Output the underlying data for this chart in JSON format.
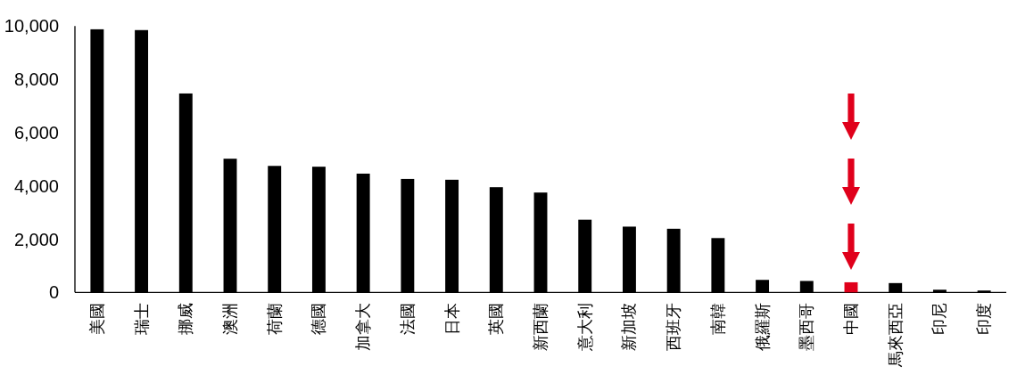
{
  "chart_data": {
    "type": "bar",
    "categories": [
      "美國",
      "瑞士",
      "挪威",
      "澳洲",
      "荷蘭",
      "德國",
      "加拿大",
      "法國",
      "日本",
      "英國",
      "新西蘭",
      "意大利",
      "新加坡",
      "西班牙",
      "南韓",
      "俄羅斯",
      "墨西哥",
      "中國",
      "馬來西亞",
      "印尼",
      "印度"
    ],
    "values": [
      9880,
      9850,
      7470,
      5020,
      4750,
      4720,
      4460,
      4260,
      4230,
      3950,
      3750,
      2730,
      2470,
      2390,
      2040,
      470,
      430,
      380,
      350,
      100,
      70
    ],
    "colors": [
      "#000000",
      "#000000",
      "#000000",
      "#000000",
      "#000000",
      "#000000",
      "#000000",
      "#000000",
      "#000000",
      "#000000",
      "#000000",
      "#000000",
      "#000000",
      "#000000",
      "#000000",
      "#000000",
      "#000000",
      "#e0001b",
      "#000000",
      "#000000",
      "#000000"
    ],
    "ylim": [
      0,
      10000
    ],
    "yticks": [
      0,
      {
        "value": 2000,
        "label": "2,000"
      },
      {
        "value": 4000,
        "label": "4,000"
      },
      {
        "value": 6000,
        "label": "6,000"
      },
      {
        "value": 8000,
        "label": "8,000"
      },
      {
        "value": 10000,
        "label": "10,000"
      }
    ]
  }
}
